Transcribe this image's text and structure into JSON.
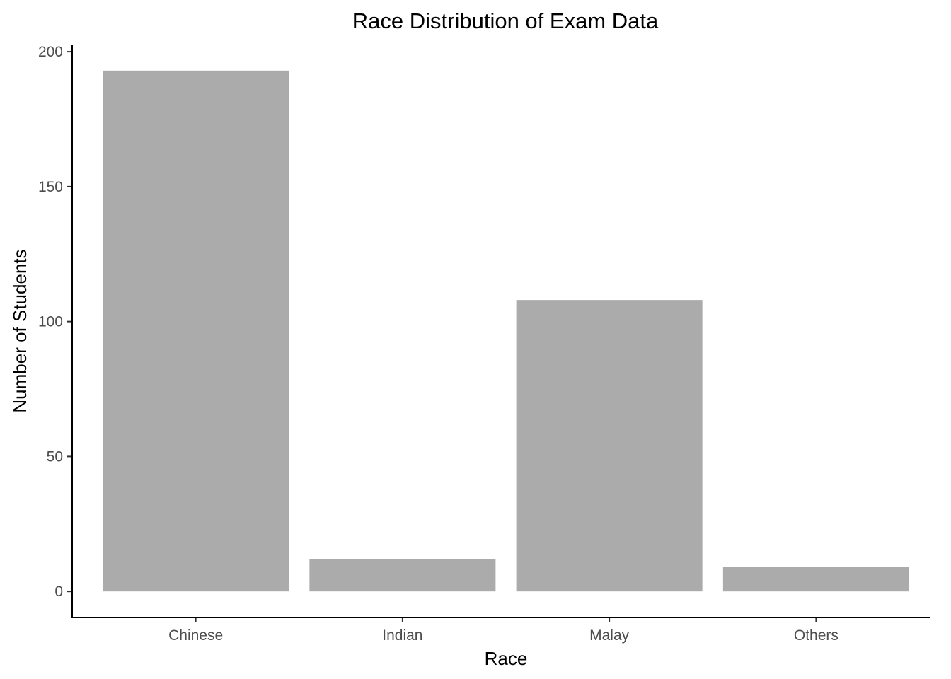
{
  "chart_data": {
    "type": "bar",
    "title": "Race Distribution of Exam Data",
    "xlabel": "Race",
    "ylabel": "Number of Students",
    "categories": [
      "Chinese",
      "Indian",
      "Malay",
      "Others"
    ],
    "values": [
      193,
      12,
      108,
      9
    ],
    "yticks": [
      0,
      50,
      100,
      150,
      200
    ],
    "ylim": [
      -9.65,
      202.65
    ],
    "bar_color": "#ababab",
    "grid": false,
    "legend": "none"
  }
}
